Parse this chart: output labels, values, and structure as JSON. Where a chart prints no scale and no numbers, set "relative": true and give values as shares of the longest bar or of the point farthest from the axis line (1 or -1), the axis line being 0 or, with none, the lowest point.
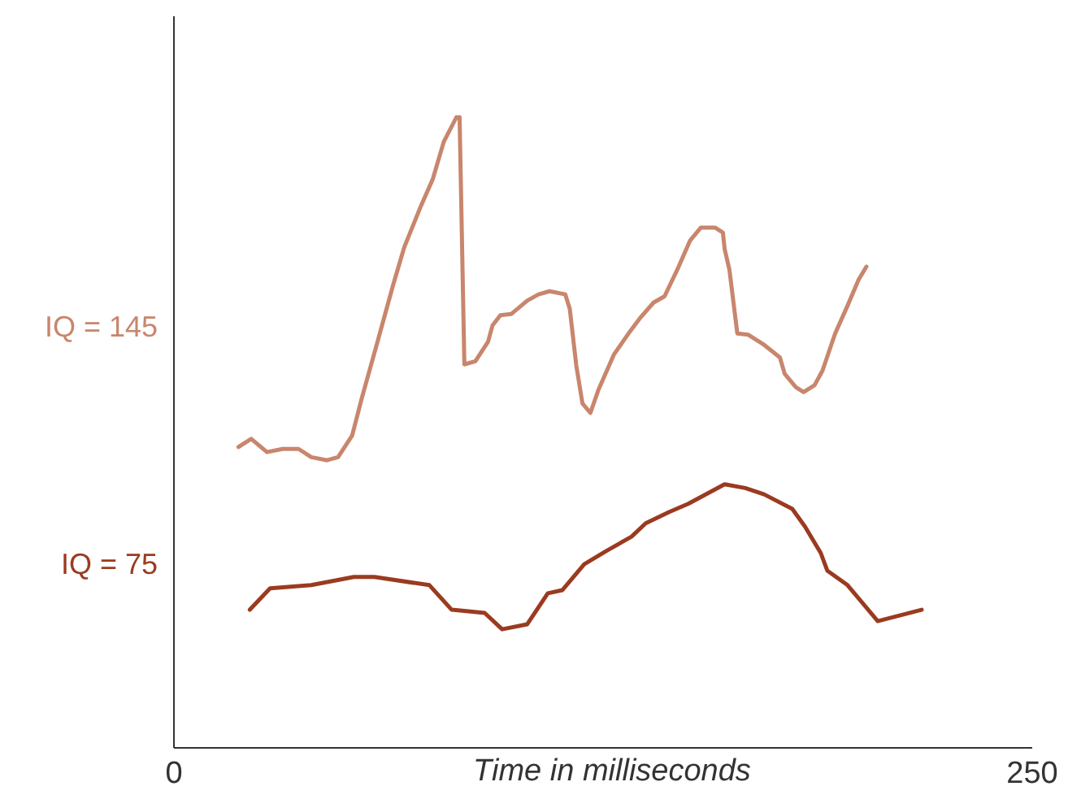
{
  "chart_data": {
    "type": "line",
    "relative": true,
    "xlabel": "Time in milliseconds",
    "xlim": [
      0,
      250
    ],
    "xticks": [
      0,
      250
    ],
    "legend": false,
    "grid": false,
    "marker": "none",
    "line_style": "solid",
    "series": [
      {
        "name": "IQ = 145",
        "color": "#c8866c",
        "x": [
          18.8,
          22.5,
          27.1,
          31.7,
          36.3,
          40.0,
          44.6,
          47.8,
          51.9,
          54.7,
          59.3,
          63.9,
          67.1,
          71.7,
          75.4,
          78.6,
          82.3,
          83.2,
          84.6,
          87.8,
          91.5,
          92.8,
          95.1,
          98.3,
          102.9,
          106.2,
          109.4,
          114.0,
          115.3,
          117.2,
          119.0,
          121.3,
          123.6,
          128.2,
          132.8,
          136.0,
          139.7,
          142.9,
          146.6,
          150.3,
          153.5,
          157.6,
          159.9,
          160.4,
          161.8,
          164.1,
          167.3,
          171.9,
          176.5,
          177.9,
          181.1,
          183.4,
          186.6,
          188.9,
          192.6,
          196.2,
          199.4,
          201.7
        ],
        "values": [
          0.477,
          0.49,
          0.469,
          0.474,
          0.474,
          0.461,
          0.456,
          0.461,
          0.495,
          0.554,
          0.644,
          0.735,
          0.794,
          0.856,
          0.902,
          0.961,
          1,
          1,
          0.608,
          0.613,
          0.644,
          0.67,
          0.686,
          0.688,
          0.709,
          0.719,
          0.724,
          0.719,
          0.696,
          0.606,
          0.546,
          0.531,
          0.567,
          0.624,
          0.66,
          0.683,
          0.706,
          0.716,
          0.758,
          0.804,
          0.825,
          0.825,
          0.817,
          0.791,
          0.758,
          0.657,
          0.655,
          0.639,
          0.619,
          0.593,
          0.572,
          0.564,
          0.575,
          0.598,
          0.657,
          0.701,
          0.742,
          0.763
        ]
      },
      {
        "name": "IQ = 75",
        "color": "#9a3b20",
        "x": [
          22.1,
          28.0,
          40.0,
          52.4,
          58.4,
          74.4,
          80.9,
          90.5,
          95.6,
          102.9,
          108.9,
          113.1,
          119.5,
          125.9,
          133.3,
          137.4,
          144.3,
          149.8,
          160.4,
          166.4,
          171.9,
          180.1,
          183.8,
          188.4,
          190.3,
          196.2,
          205.0,
          217.8
        ],
        "values": [
          0.219,
          0.253,
          0.258,
          0.271,
          0.271,
          0.258,
          0.219,
          0.214,
          0.188,
          0.196,
          0.245,
          0.25,
          0.291,
          0.312,
          0.335,
          0.356,
          0.374,
          0.387,
          0.418,
          0.412,
          0.402,
          0.379,
          0.351,
          0.309,
          0.281,
          0.258,
          0.201,
          0.219
        ]
      }
    ]
  }
}
